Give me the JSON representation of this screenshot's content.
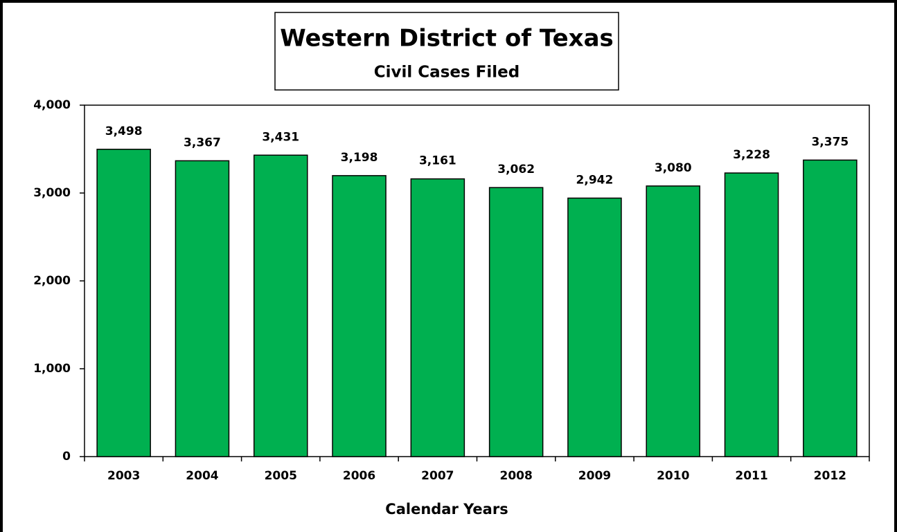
{
  "chart_data": {
    "type": "bar",
    "title": "Western District of Texas",
    "subtitle": "Civil Cases Filed",
    "x_label": "Calendar Years",
    "categories": [
      "2003",
      "2004",
      "2005",
      "2006",
      "2007",
      "2008",
      "2009",
      "2010",
      "2011",
      "2012"
    ],
    "values": [
      3498,
      3367,
      3431,
      3198,
      3161,
      3062,
      2942,
      3080,
      3228,
      3375
    ],
    "value_labels": [
      "3,498",
      "3,367",
      "3,431",
      "3,198",
      "3,161",
      "3,062",
      "2,942",
      "3,080",
      "3,228",
      "3,375"
    ],
    "color": "#00b050",
    "ylim": [
      0,
      4000
    ],
    "yticks": [
      0,
      {
        "value": 1000,
        "label": "1,000"
      },
      {
        "value": 2000,
        "label": "2,000"
      },
      {
        "value": 3000,
        "label": "3,000"
      },
      {
        "value": 4000,
        "label": "4,000"
      }
    ],
    "grid": false
  }
}
